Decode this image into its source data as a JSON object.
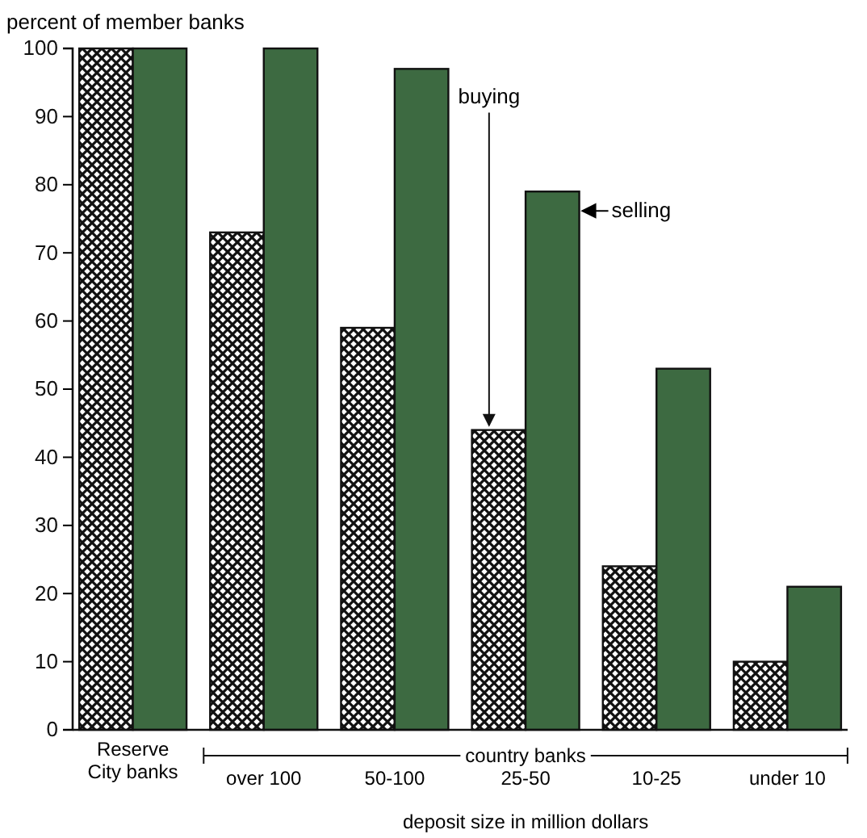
{
  "chart_data": {
    "type": "bar",
    "ylabel": "percent of member banks",
    "xlabel": "deposit size in million dollars",
    "categories": [
      "Reserve City banks",
      "over 100",
      "50-100",
      "25-50",
      "10-25",
      "under 10"
    ],
    "series": [
      {
        "name": "buying",
        "color": "#111111",
        "values": [
          100,
          73,
          59,
          44,
          24,
          10
        ]
      },
      {
        "name": "selling",
        "color": "#3d6a41",
        "values": [
          100,
          100,
          97,
          79,
          53,
          21
        ]
      }
    ],
    "ylim": [
      0,
      100
    ],
    "yticks": [
      0,
      10,
      20,
      30,
      40,
      50,
      60,
      70,
      80,
      90,
      100
    ],
    "grid": false,
    "annotations": [
      "country banks"
    ]
  }
}
